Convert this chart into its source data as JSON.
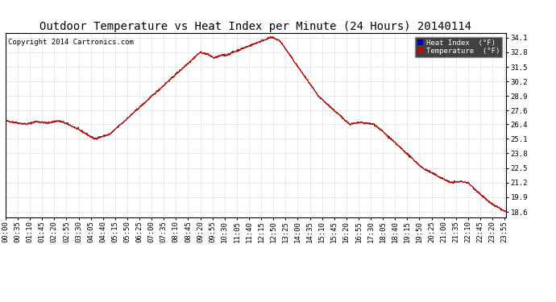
{
  "title": "Outdoor Temperature vs Heat Index per Minute (24 Hours) 20140114",
  "copyright": "Copyright 2014 Cartronics.com",
  "legend_heat_index": "Heat Index  (°F)",
  "legend_temperature": "Temperature  (°F)",
  "yticks": [
    18.6,
    19.9,
    21.2,
    22.5,
    23.8,
    25.1,
    26.4,
    27.6,
    28.9,
    30.2,
    31.5,
    32.8,
    34.1
  ],
  "ylim": [
    18.1,
    34.5
  ],
  "color_heat_index_label_bg": "#0000bb",
  "color_temperature_label_bg": "#cc0000",
  "color_temp_line": "#cc0000",
  "color_heat_line": "#222222",
  "bg_color": "#ffffff",
  "grid_color": "#bbbbbb",
  "title_fontsize": 10,
  "copyright_fontsize": 6.5,
  "tick_fontsize": 6.5,
  "legend_fontsize": 6.5,
  "n_points": 1440,
  "xtick_step": 35
}
